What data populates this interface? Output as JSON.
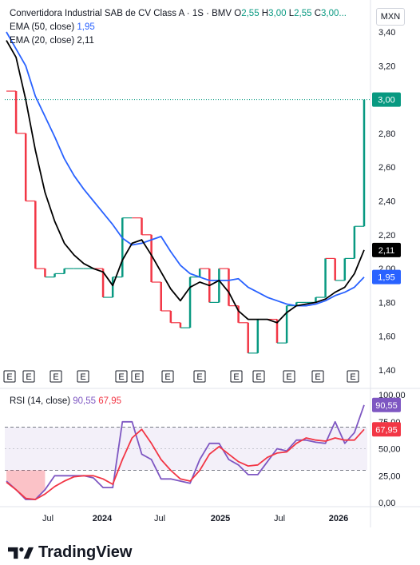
{
  "header": {
    "title": "Convertidora Industrial SAB de CV Class A · 1S · BMV",
    "o_label": "O",
    "o_value": "2,55",
    "h_label": "H",
    "h_value": "3,00",
    "l_label": "L",
    "l_value": "2,55",
    "c_label": "C",
    "c_value": "3,00...",
    "currency": "MXN"
  },
  "legends": {
    "ema50_label": "EMA (50, close)",
    "ema50_value": "1,95",
    "ema20_label": "EMA (20, close)",
    "ema20_value": "2,11",
    "rsi_label": "RSI (14, close)",
    "rsi_value": "90,55",
    "rsi_ma_value": "67,95"
  },
  "brand": {
    "name": "TradingView"
  },
  "colors": {
    "up": "#089981",
    "down": "#f23645",
    "ema50": "#2962ff",
    "ema20": "#000000",
    "rsi": "#7e57c2",
    "rsi_ma": "#f23645",
    "band": "#7e57c2"
  },
  "chart_data": [
    {
      "type": "line",
      "pane": "price",
      "ylim": [
        1.4,
        3.4
      ],
      "y_ticks": [
        "3,40",
        "3,20",
        "3,00",
        "2,80",
        "2,60",
        "2,40",
        "2,20",
        "2,00",
        "1,80",
        "1,60",
        "1,40"
      ],
      "x_ticks": [
        "Jul",
        "2024",
        "Jul",
        "2025",
        "Jul",
        "2026"
      ],
      "last_price_label": "3,00",
      "ema20_label": "2,11",
      "ema50_label": "1,95",
      "earnings_marker": "E",
      "earnings_count": 13,
      "series": [
        {
          "name": "EMA (50, close)",
          "values": [
            3.4,
            3.3,
            3.2,
            3.02,
            2.9,
            2.78,
            2.65,
            2.55,
            2.47,
            2.4,
            2.33,
            2.26,
            2.18,
            2.14,
            2.15,
            2.17,
            2.19,
            2.1,
            2.02,
            1.97,
            1.95,
            1.93,
            1.93,
            1.93,
            1.94,
            1.89,
            1.86,
            1.83,
            1.81,
            1.79,
            1.78,
            1.78,
            1.79,
            1.81,
            1.84,
            1.86,
            1.89,
            1.95
          ]
        },
        {
          "name": "EMA (20, close)",
          "values": [
            3.35,
            3.25,
            3.0,
            2.7,
            2.45,
            2.28,
            2.15,
            2.08,
            2.03,
            2.0,
            1.98,
            1.9,
            2.05,
            2.15,
            2.17,
            2.08,
            1.98,
            1.88,
            1.81,
            1.89,
            1.92,
            1.9,
            1.93,
            1.86,
            1.75,
            1.7,
            1.7,
            1.7,
            1.68,
            1.74,
            1.78,
            1.79,
            1.8,
            1.82,
            1.86,
            1.89,
            1.97,
            2.11
          ]
        },
        {
          "name": "Close",
          "values": [
            3.05,
            2.8,
            2.4,
            2.0,
            1.95,
            1.97,
            2.0,
            2.0,
            2.0,
            2.0,
            1.83,
            1.95,
            2.3,
            2.3,
            2.2,
            1.92,
            1.75,
            1.68,
            1.65,
            1.95,
            2.0,
            1.8,
            2.0,
            1.78,
            1.68,
            1.5,
            1.7,
            1.7,
            1.56,
            1.78,
            1.8,
            1.8,
            1.83,
            2.06,
            1.93,
            2.06,
            2.25,
            3.0
          ]
        }
      ]
    },
    {
      "type": "line",
      "pane": "rsi",
      "ylim": [
        0,
        100
      ],
      "y_ticks": [
        "100,00",
        "75,00",
        "50,00",
        "25,00",
        "0,00"
      ],
      "bands": [
        70,
        30
      ],
      "series": [
        {
          "name": "RSI (14, close)",
          "values": [
            20,
            12,
            3,
            3,
            12,
            25,
            25,
            25,
            25,
            23,
            14,
            14,
            75,
            75,
            45,
            40,
            22,
            22,
            20,
            18,
            40,
            55,
            55,
            40,
            35,
            26,
            26,
            38,
            50,
            48,
            58,
            58,
            56,
            55,
            75,
            55,
            65,
            90.55
          ]
        },
        {
          "name": "RSI MA",
          "values": [
            19,
            12,
            4,
            3,
            8,
            15,
            20,
            24,
            25,
            25,
            22,
            17,
            40,
            60,
            68,
            55,
            40,
            30,
            22,
            20,
            30,
            45,
            52,
            45,
            38,
            34,
            35,
            42,
            46,
            47,
            55,
            60,
            58,
            57,
            60,
            58,
            58,
            67.95
          ]
        }
      ]
    }
  ]
}
